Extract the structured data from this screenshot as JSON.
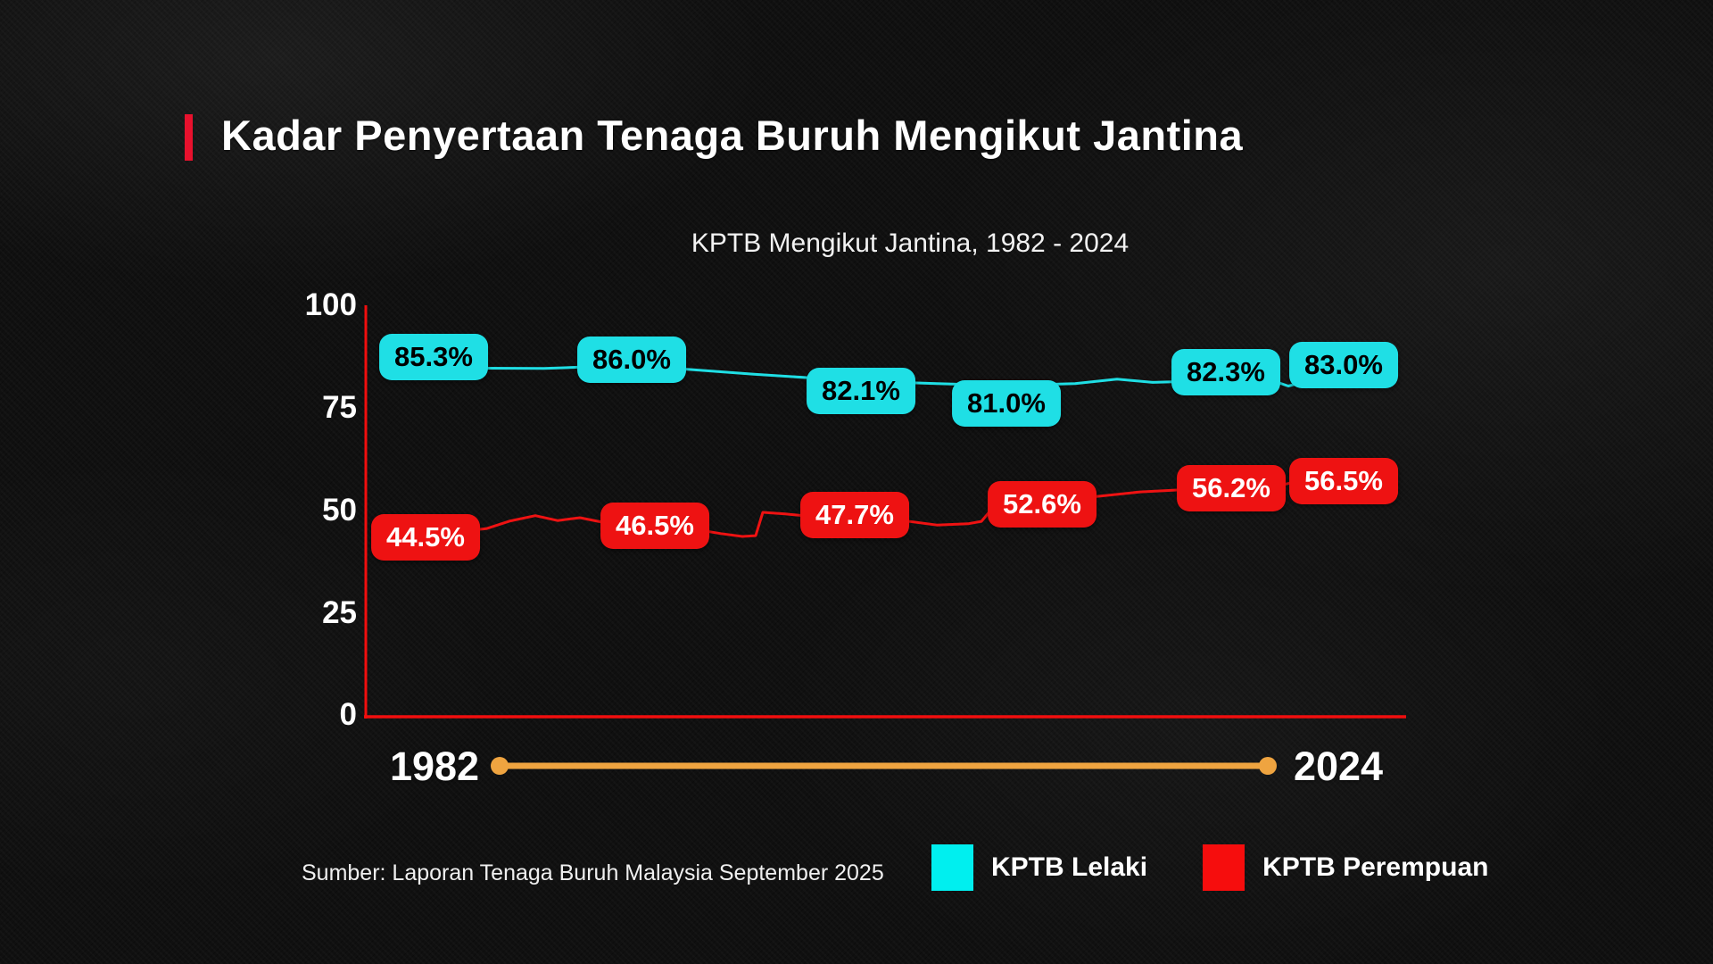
{
  "header": {
    "title": "Kadar Penyertaan Tenaga Buruh Mengikut Jantina",
    "accent_color": "#e8112d"
  },
  "chart_data": {
    "type": "line",
    "title": "KPTB Mengikut Jantina, 1982 - 2024",
    "ylim": [
      0,
      100
    ],
    "y_ticks": [
      100,
      75,
      50,
      25,
      0
    ],
    "y_tick_labels": [
      "100",
      "75",
      "50",
      "25",
      "0"
    ],
    "x_start_label": "1982",
    "x_end_label": "2024",
    "axis_color": "#f10e0e",
    "timeline_color": "#efa440",
    "grid": false,
    "legend_position": "bottom-right",
    "series": [
      {
        "name": "KPTB Lelaki",
        "color": "#1fdfe5",
        "label_text_color": "#000000",
        "values": [
          85.3,
          86.0,
          82.1,
          81.0,
          82.3,
          83.0
        ],
        "labels": [
          "85.3%",
          "86.0%",
          "82.1%",
          "81.0%",
          "82.3%",
          "83.0%"
        ]
      },
      {
        "name": "KPTB Perempuan",
        "color": "#ee1212",
        "label_text_color": "#ffffff",
        "values": [
          44.5,
          46.5,
          47.7,
          52.6,
          56.2,
          56.5
        ],
        "labels": [
          "44.5%",
          "46.5%",
          "47.7%",
          "52.6%",
          "56.2%",
          "56.5%"
        ]
      }
    ],
    "legend": [
      {
        "label": "KPTB Lelaki",
        "color": "#00efef"
      },
      {
        "label": "KPTB Perempuan",
        "color": "#f60d0d"
      }
    ]
  },
  "footer": {
    "source": "Sumber: Laporan Tenaga Buruh Malaysia September 2025"
  }
}
